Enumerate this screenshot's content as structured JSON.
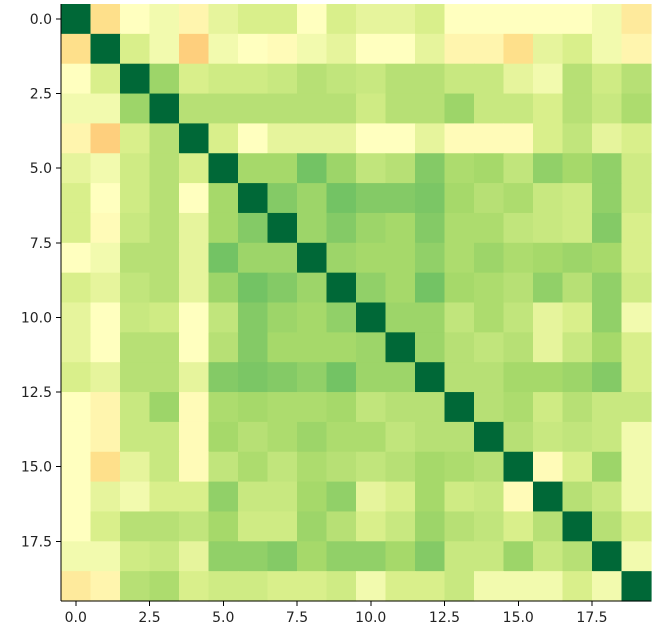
{
  "chart_data": {
    "type": "heatmap",
    "title": "",
    "xlabel": "",
    "ylabel": "",
    "colormap": "RdYlGn-like (low = cream/orange, high = dark green)",
    "grid": false,
    "xlim": [
      -0.5,
      19.5
    ],
    "ylim": [
      19.5,
      -0.5
    ],
    "x_ticks": [
      0.0,
      2.5,
      5.0,
      7.5,
      10.0,
      12.5,
      15.0,
      17.5
    ],
    "x_tick_labels": [
      "0.0",
      "2.5",
      "5.0",
      "7.5",
      "10.0",
      "12.5",
      "15.0",
      "17.5"
    ],
    "y_ticks": [
      0.0,
      2.5,
      5.0,
      7.5,
      10.0,
      12.5,
      15.0,
      17.5
    ],
    "y_tick_labels": [
      "0.0",
      "2.5",
      "5.0",
      "7.5",
      "10.0",
      "12.5",
      "15.0",
      "17.5"
    ],
    "matrix": [
      [
        1.0,
        0.15,
        0.3,
        0.35,
        0.25,
        0.4,
        0.45,
        0.45,
        0.3,
        0.45,
        0.4,
        0.4,
        0.45,
        0.3,
        0.3,
        0.3,
        0.3,
        0.3,
        0.35,
        0.2
      ],
      [
        0.15,
        1.0,
        0.45,
        0.35,
        0.1,
        0.35,
        0.3,
        0.28,
        0.35,
        0.4,
        0.3,
        0.3,
        0.4,
        0.25,
        0.25,
        0.15,
        0.4,
        0.45,
        0.35,
        0.25
      ],
      [
        0.3,
        0.45,
        1.0,
        0.62,
        0.45,
        0.48,
        0.48,
        0.5,
        0.55,
        0.52,
        0.5,
        0.55,
        0.55,
        0.5,
        0.5,
        0.4,
        0.35,
        0.55,
        0.48,
        0.55
      ],
      [
        0.35,
        0.35,
        0.62,
        1.0,
        0.55,
        0.55,
        0.55,
        0.55,
        0.55,
        0.55,
        0.48,
        0.55,
        0.55,
        0.62,
        0.5,
        0.5,
        0.45,
        0.55,
        0.5,
        0.58
      ],
      [
        0.25,
        0.1,
        0.45,
        0.55,
        1.0,
        0.45,
        0.3,
        0.4,
        0.4,
        0.4,
        0.3,
        0.3,
        0.4,
        0.28,
        0.28,
        0.28,
        0.45,
        0.52,
        0.4,
        0.45
      ],
      [
        0.4,
        0.35,
        0.48,
        0.55,
        0.45,
        1.0,
        0.6,
        0.6,
        0.72,
        0.62,
        0.52,
        0.55,
        0.68,
        0.58,
        0.6,
        0.52,
        0.65,
        0.6,
        0.65,
        0.48
      ],
      [
        0.45,
        0.3,
        0.48,
        0.55,
        0.3,
        0.6,
        1.0,
        0.68,
        0.62,
        0.72,
        0.68,
        0.68,
        0.7,
        0.6,
        0.55,
        0.58,
        0.5,
        0.48,
        0.65,
        0.48
      ],
      [
        0.45,
        0.28,
        0.5,
        0.55,
        0.4,
        0.6,
        0.68,
        1.0,
        0.62,
        0.68,
        0.62,
        0.6,
        0.68,
        0.58,
        0.58,
        0.52,
        0.5,
        0.48,
        0.68,
        0.45
      ],
      [
        0.3,
        0.35,
        0.55,
        0.55,
        0.4,
        0.72,
        0.62,
        0.62,
        1.0,
        0.62,
        0.6,
        0.6,
        0.65,
        0.58,
        0.62,
        0.58,
        0.6,
        0.62,
        0.6,
        0.45
      ],
      [
        0.45,
        0.4,
        0.52,
        0.55,
        0.4,
        0.62,
        0.72,
        0.68,
        0.62,
        1.0,
        0.65,
        0.6,
        0.72,
        0.6,
        0.58,
        0.55,
        0.65,
        0.55,
        0.65,
        0.48
      ],
      [
        0.4,
        0.3,
        0.5,
        0.48,
        0.3,
        0.52,
        0.68,
        0.62,
        0.6,
        0.65,
        1.0,
        0.62,
        0.62,
        0.52,
        0.58,
        0.52,
        0.4,
        0.45,
        0.65,
        0.35
      ],
      [
        0.4,
        0.3,
        0.55,
        0.55,
        0.3,
        0.55,
        0.68,
        0.6,
        0.6,
        0.6,
        0.62,
        1.0,
        0.62,
        0.55,
        0.52,
        0.55,
        0.4,
        0.5,
        0.6,
        0.45
      ],
      [
        0.45,
        0.4,
        0.55,
        0.55,
        0.4,
        0.68,
        0.7,
        0.68,
        0.65,
        0.72,
        0.62,
        0.62,
        1.0,
        0.55,
        0.55,
        0.6,
        0.6,
        0.62,
        0.68,
        0.45
      ],
      [
        0.3,
        0.25,
        0.5,
        0.62,
        0.28,
        0.58,
        0.6,
        0.58,
        0.58,
        0.6,
        0.52,
        0.55,
        0.55,
        1.0,
        0.55,
        0.58,
        0.48,
        0.55,
        0.5,
        0.5
      ],
      [
        0.3,
        0.25,
        0.5,
        0.5,
        0.28,
        0.6,
        0.55,
        0.58,
        0.62,
        0.58,
        0.58,
        0.52,
        0.55,
        0.55,
        1.0,
        0.55,
        0.5,
        0.52,
        0.5,
        0.35
      ],
      [
        0.3,
        0.15,
        0.4,
        0.5,
        0.28,
        0.52,
        0.58,
        0.52,
        0.58,
        0.55,
        0.52,
        0.55,
        0.6,
        0.58,
        0.55,
        1.0,
        0.28,
        0.45,
        0.62,
        0.35
      ],
      [
        0.3,
        0.4,
        0.35,
        0.45,
        0.45,
        0.65,
        0.5,
        0.5,
        0.6,
        0.65,
        0.4,
        0.45,
        0.6,
        0.48,
        0.5,
        0.28,
        1.0,
        0.55,
        0.5,
        0.35
      ],
      [
        0.3,
        0.45,
        0.55,
        0.55,
        0.52,
        0.6,
        0.48,
        0.48,
        0.62,
        0.55,
        0.45,
        0.5,
        0.62,
        0.55,
        0.52,
        0.45,
        0.55,
        1.0,
        0.55,
        0.45
      ],
      [
        0.35,
        0.35,
        0.48,
        0.5,
        0.4,
        0.65,
        0.65,
        0.68,
        0.6,
        0.65,
        0.65,
        0.6,
        0.68,
        0.5,
        0.5,
        0.62,
        0.5,
        0.55,
        1.0,
        0.35
      ],
      [
        0.2,
        0.25,
        0.55,
        0.58,
        0.45,
        0.48,
        0.48,
        0.45,
        0.45,
        0.48,
        0.35,
        0.45,
        0.45,
        0.5,
        0.35,
        0.35,
        0.35,
        0.45,
        0.35,
        1.0
      ]
    ]
  }
}
